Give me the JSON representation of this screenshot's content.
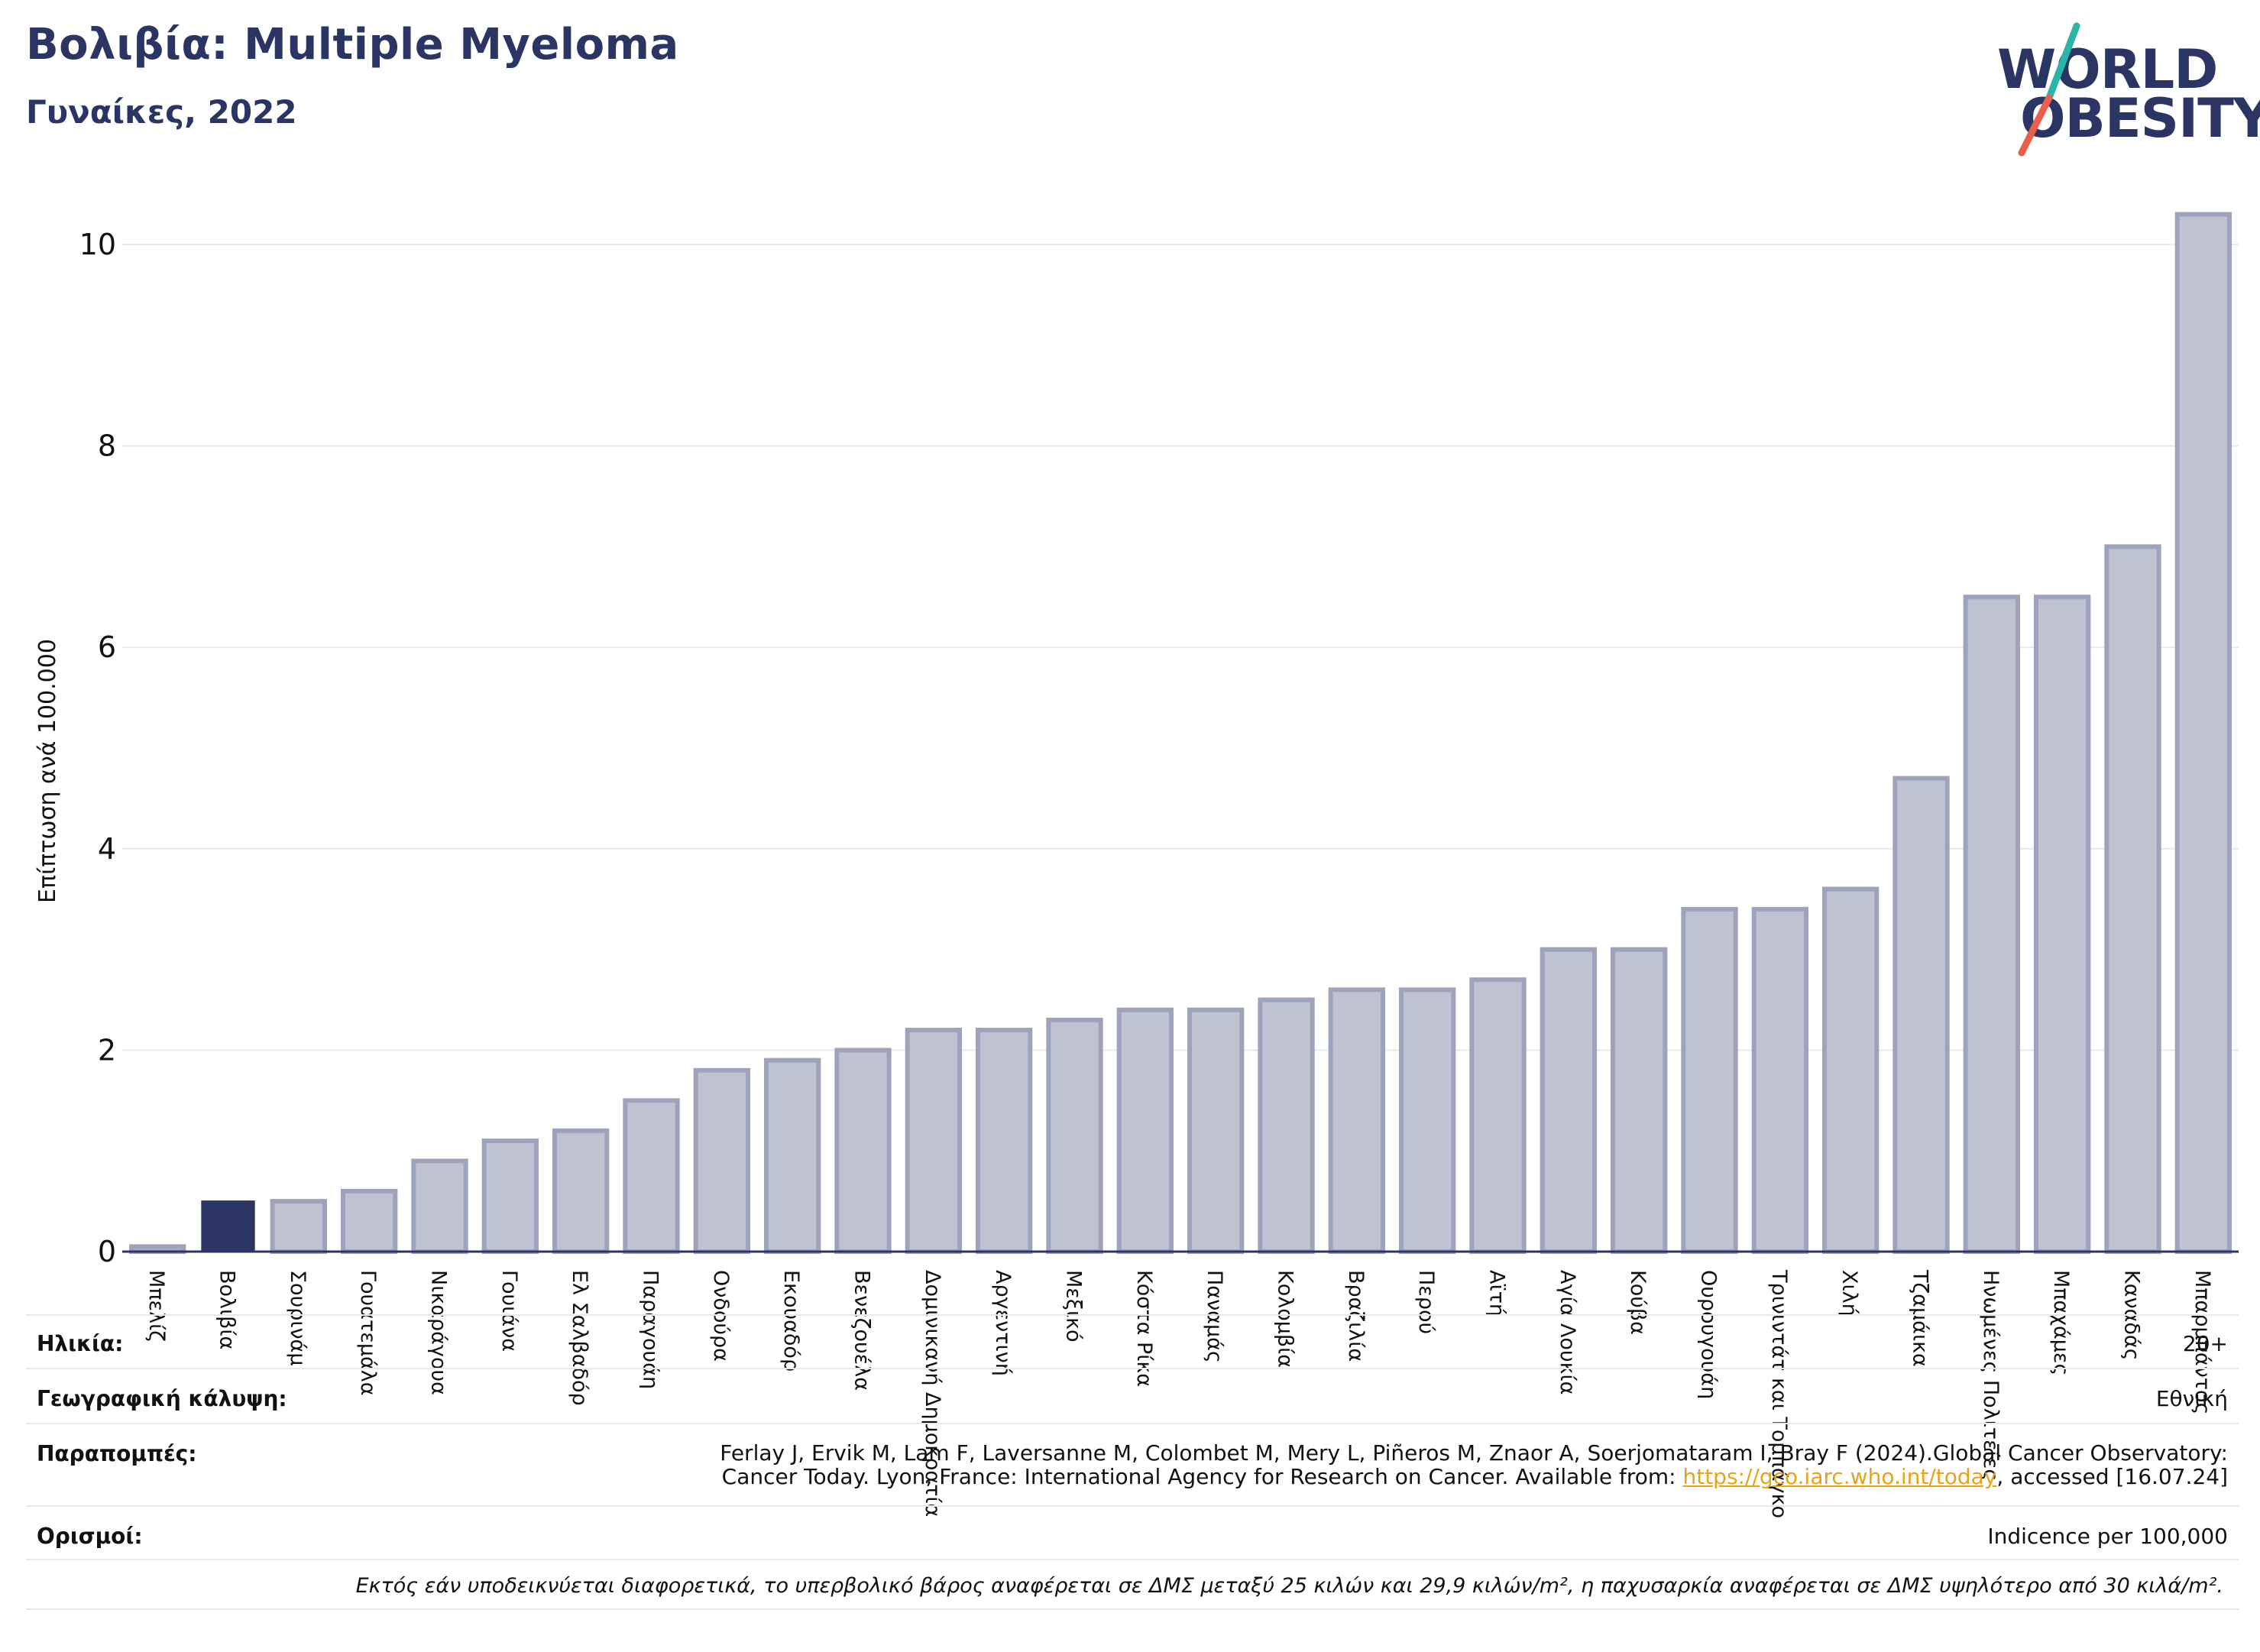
{
  "header": {
    "title": "Βολιβία: Multiple Myeloma",
    "subtitle": "Γυναίκες, 2022"
  },
  "logo": {
    "line1": "WORLD",
    "line2": "OBESITY",
    "colors": {
      "text": "#2a3563",
      "slash_top": "#2bb5a8",
      "slash_bottom": "#e8604c"
    }
  },
  "colors": {
    "highlight": "#2a3563",
    "bar_fill": "#bfc2d0",
    "bar_stroke": "#9ea3bb",
    "grid": "#e6e8ef",
    "axis": "#2a3563"
  },
  "chart_data": {
    "type": "bar",
    "title": "Βολιβία: Multiple Myeloma",
    "subtitle": "Γυναίκες, 2022",
    "ylabel": "Επίπτωση ανά 100.000",
    "xlabel": "",
    "ylim": [
      0,
      10.5
    ],
    "yticks": [
      0,
      2,
      4,
      6,
      8,
      10
    ],
    "grid": true,
    "highlight_category": "Βολιβία",
    "categories": [
      "Μπελίζ",
      "Βολιβία",
      "Σουρινάμ",
      "Γουατεμάλα",
      "Νικαράγουα",
      "Γουιάνα",
      "Ελ Σαλβαδόρ",
      "Παραγουάη",
      "Ονδούρα",
      "Εκουαδόρ",
      "Βενεζουέλα",
      "Δομινικανή Δημοκρατία",
      "Αργεντινή",
      "Μεξικό",
      "Κόστα Ρίκα",
      "Παναμάς",
      "Κολομβία",
      "Βραζιλία",
      "Περού",
      "Αϊτή",
      "Αγία Λουκία",
      "Κούβα",
      "Ουρουγουάη",
      "Τρινιντάτ και Τομπάγκο",
      "Χιλή",
      "Τζαμάικα",
      "Ηνωμένες Πολιτείες",
      "Μπαχάμες",
      "Καναδάς",
      "Μπαρμπάντος"
    ],
    "values": [
      0.05,
      0.5,
      0.5,
      0.6,
      0.9,
      1.1,
      1.2,
      1.5,
      1.8,
      1.9,
      2.0,
      2.2,
      2.2,
      2.3,
      2.4,
      2.4,
      2.5,
      2.6,
      2.6,
      2.7,
      3.0,
      3.0,
      3.4,
      3.4,
      3.6,
      4.7,
      6.5,
      6.5,
      7.0,
      10.3
    ]
  },
  "info": {
    "age_label": "Ηλικία:",
    "age_value": "20+",
    "coverage_label": "Γεωγραφική κάλυψη:",
    "coverage_value": "Εθνική",
    "refs_label": "Παραπομπές:",
    "refs_line1": "Ferlay J, Ervik M, Lam F, Laversanne M, Colombet M, Mery L, Piñeros M, Znaor A, Soerjomataram I, Bray F (2024).Global Cancer Observatory:",
    "refs_line2_pre": "Cancer Today. Lyon, France: International Agency for Research on Cancer. Available from: ",
    "refs_link": "https://gco.iarc.who.int/today",
    "refs_line2_post": ", accessed [16.07.24]",
    "defs_label": "Ορισμοί:",
    "defs_value": "Indicence per 100,000"
  },
  "footnote": "Εκτός εάν υποδεικνύεται διαφορετικά, το υπερβολικό βάρος αναφέρεται σε ΔΜΣ μεταξύ 25 κιλών και 29,9 κιλών/m², η παχυσαρκία αναφέρεται σε ΔΜΣ υψηλότερο από 30 κιλά/m²."
}
